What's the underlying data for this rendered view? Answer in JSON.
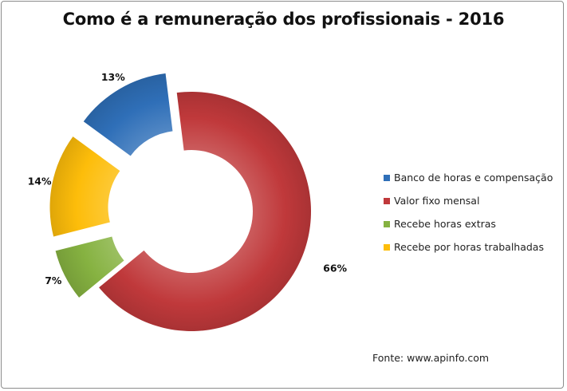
{
  "chart_data": {
    "type": "pie",
    "variant": "doughnut-exploded",
    "title": "Como é a remuneração dos profissionais - 2016",
    "categories": [
      "Valor fixo mensal",
      "Recebe horas extras",
      "Recebe por horas trabalhadas",
      "Banco de horas e compensação"
    ],
    "values": [
      66,
      7,
      14,
      13
    ],
    "labels": [
      "66%",
      "7%",
      "14%",
      "13%"
    ],
    "colors": [
      "#c0393b",
      "#86b241",
      "#fdbd0a",
      "#2f6fb8"
    ],
    "legend": {
      "position": "right",
      "entries": [
        {
          "label": "Banco de horas e compensação",
          "color": "#2f6fb8"
        },
        {
          "label": "Valor fixo mensal",
          "color": "#c0393b"
        },
        {
          "label": "Recebe horas extras",
          "color": "#86b241"
        },
        {
          "label": "Recebe por horas trabalhadas",
          "color": "#fdbd0a"
        }
      ]
    }
  },
  "source": "Fonte: www.apinfo.com"
}
